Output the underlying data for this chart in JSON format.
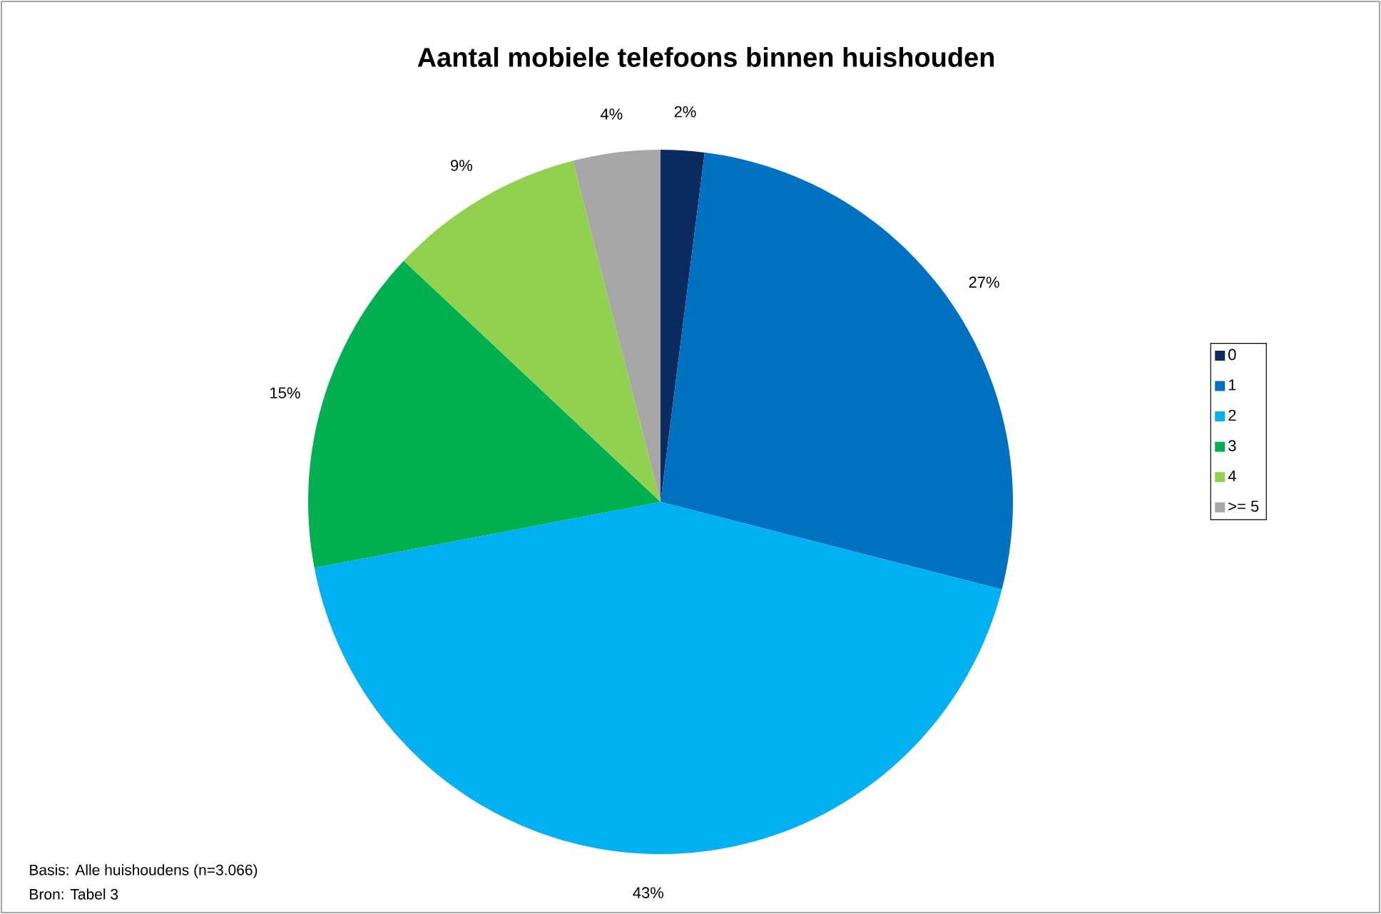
{
  "chart_data": {
    "type": "pie",
    "title": "Aantal mobiele telefoons binnen huishouden",
    "categories": [
      "0",
      "1",
      "2",
      "3",
      "4",
      ">= 5"
    ],
    "values": [
      2,
      27,
      43,
      15,
      9,
      4
    ],
    "value_labels": [
      "2%",
      "27%",
      "43%",
      "15%",
      "9%",
      "4%"
    ],
    "colors": [
      "#0b2a5e",
      "#0070c0",
      "#00b0f0",
      "#00b050",
      "#92d050",
      "#a6a6a6"
    ],
    "legend": "right",
    "annotations": [
      "Basis: Alle huishoudens (n=3.066)",
      "Bron: Tabel 3"
    ]
  }
}
